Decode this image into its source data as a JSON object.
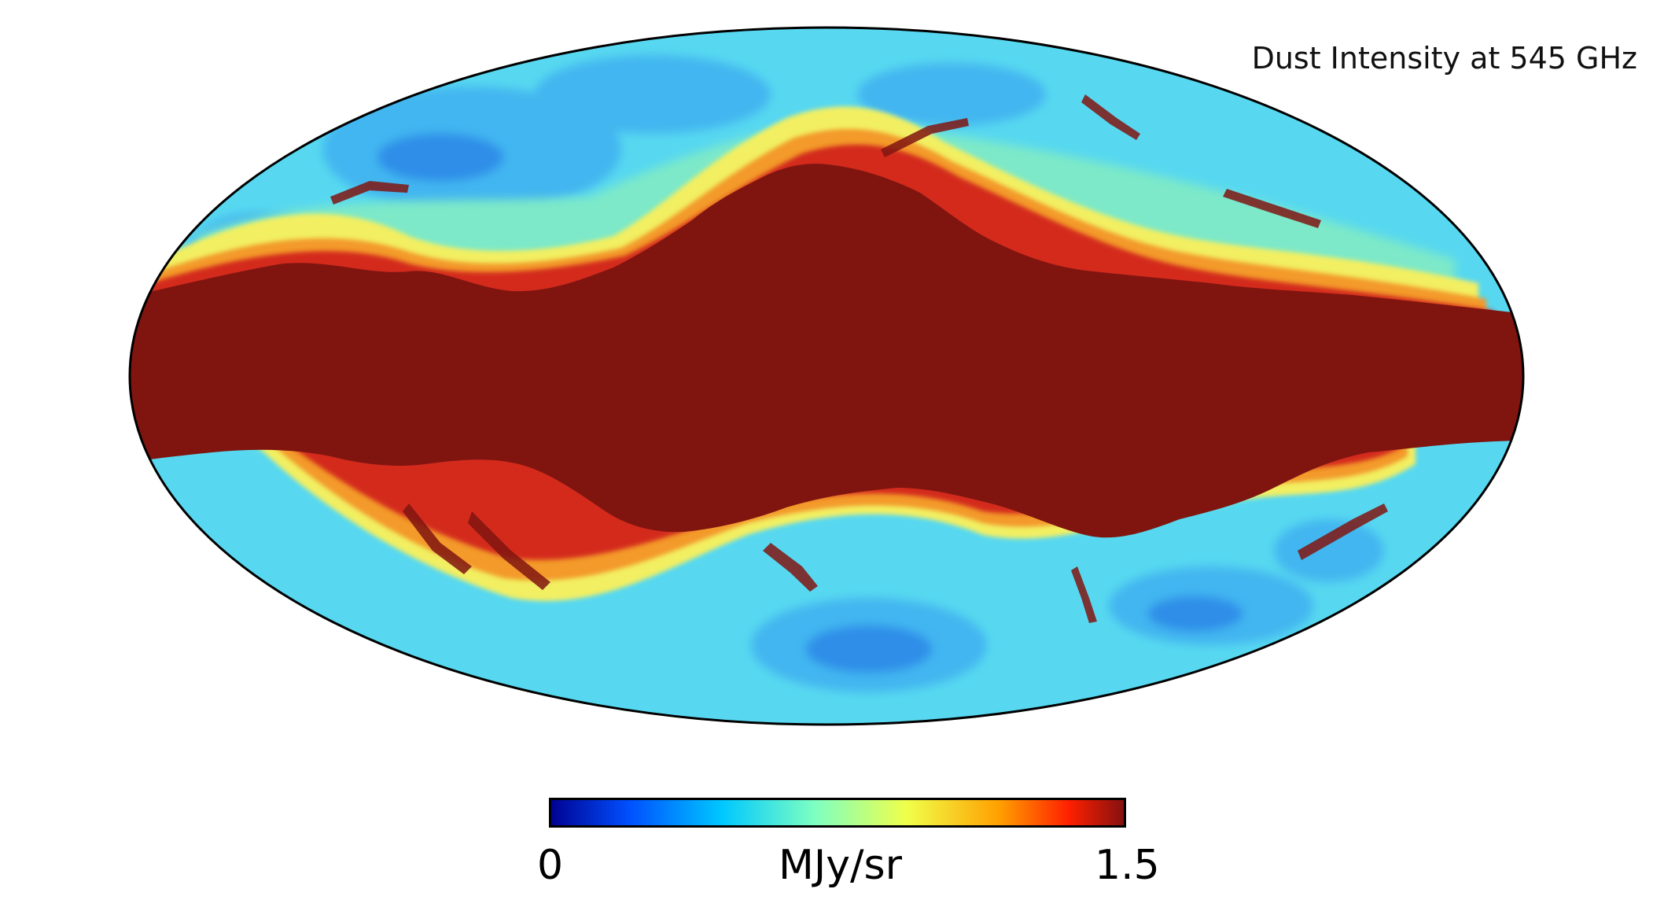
{
  "map": {
    "projection": "Mollweide",
    "title": "Dust Intensity at 545 GHz",
    "colormap": "jet",
    "colorbar": {
      "min_label": "0",
      "max_label": "1.5",
      "unit": "MJy/sr",
      "stops": [
        "#00008f",
        "#0050ff",
        "#00c8ff",
        "#7dffc2",
        "#f0ff4a",
        "#ffa000",
        "#ff2000",
        "#801010"
      ]
    },
    "colors": {
      "saturated": "#801510",
      "red": "#d3291a",
      "orange": "#f39a2c",
      "yellow": "#f2ef62",
      "green_cyan": "#7de9c8",
      "cyan": "#57d8f0",
      "light_blue": "#43b6f0",
      "blue": "#2f8ee8",
      "outline": "#000000"
    }
  }
}
